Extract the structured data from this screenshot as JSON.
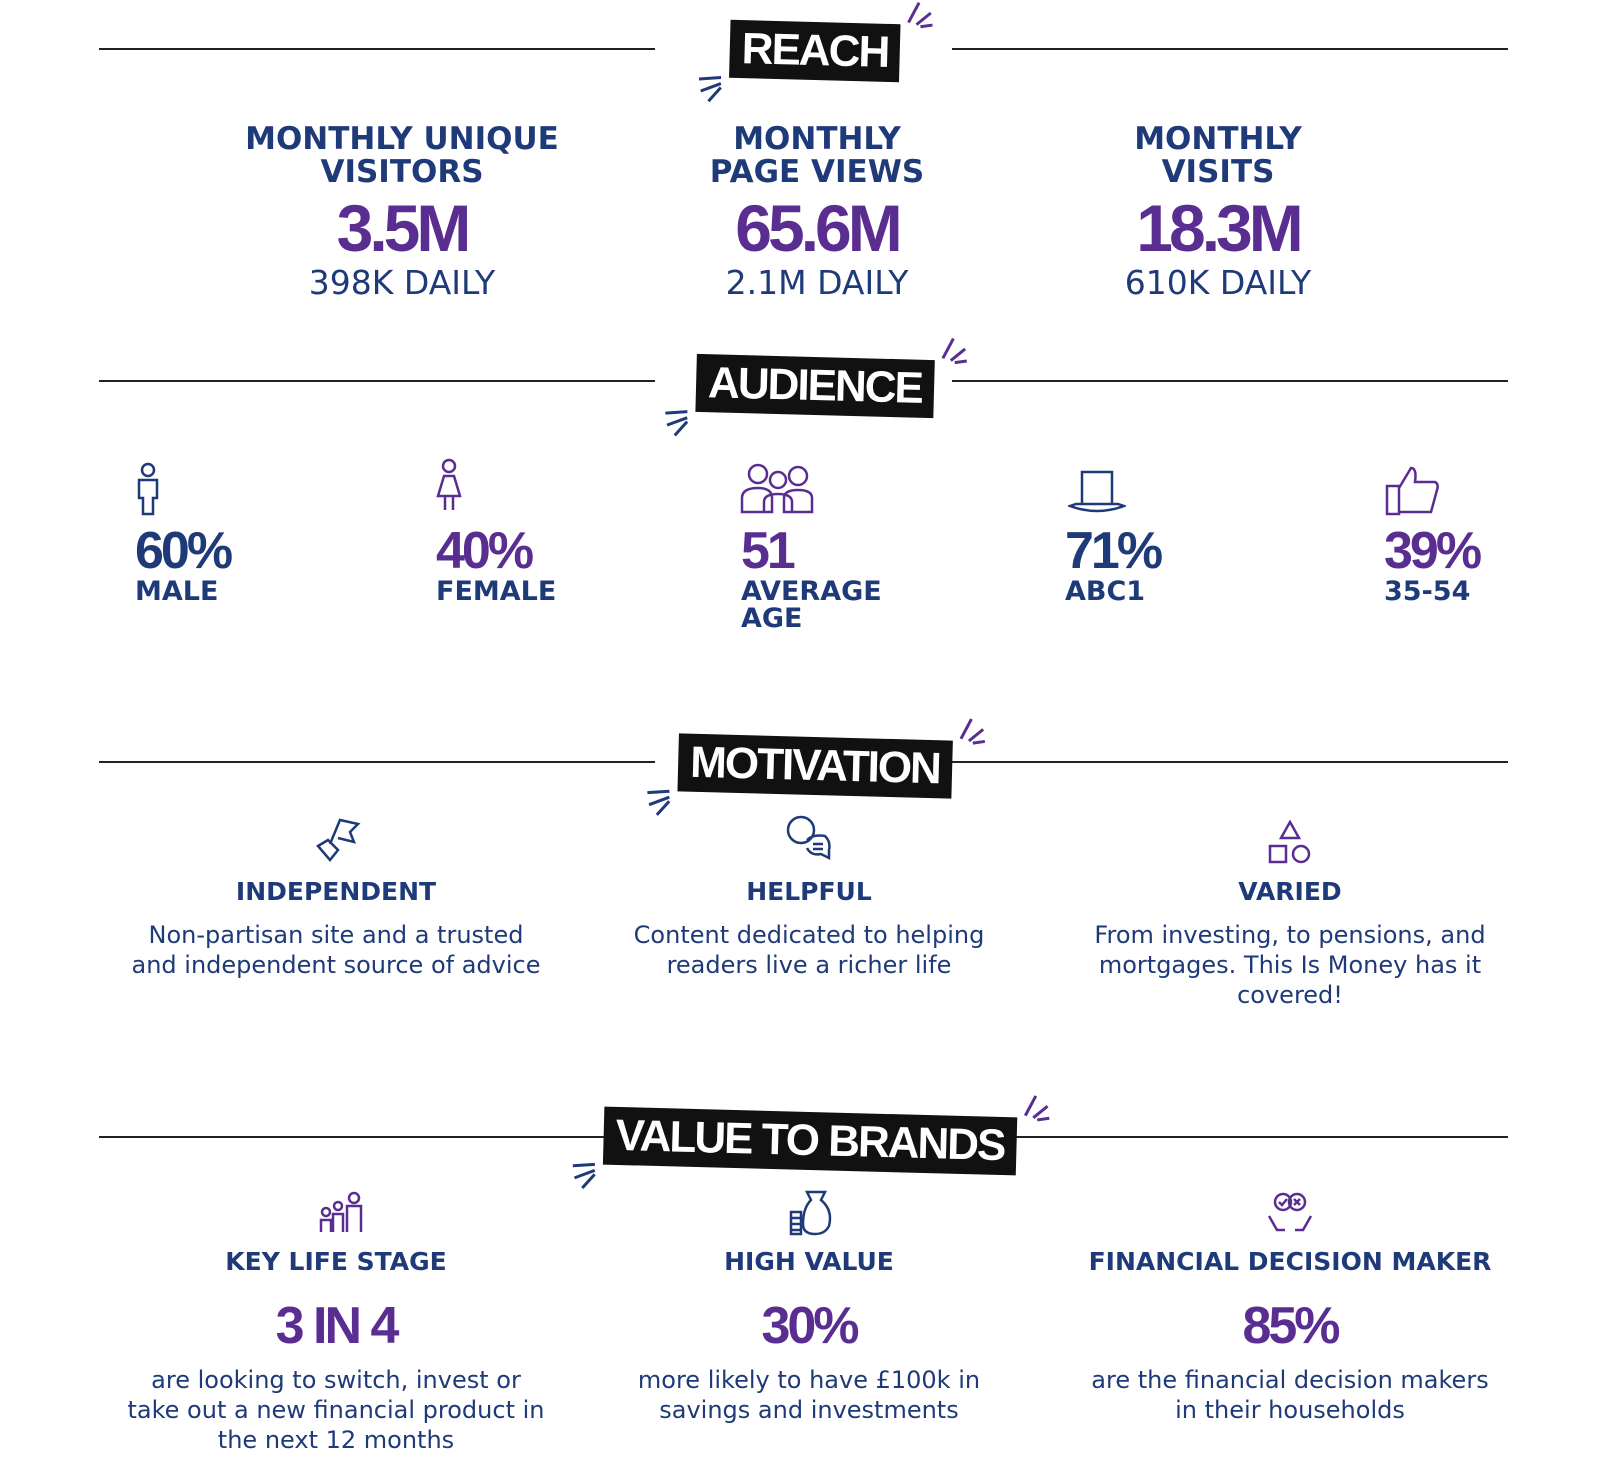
{
  "reach": {
    "title": "REACH",
    "items": [
      {
        "label": "MONTHLY UNIQUE VISITORS",
        "value": "3.5M",
        "daily": "398K DAILY"
      },
      {
        "label": "MONTHLY PAGE VIEWS",
        "value": "65.6M",
        "daily": "2.1M DAILY"
      },
      {
        "label": "MONTHLY VISITS",
        "value": "18.3M",
        "daily": "610K DAILY"
      }
    ]
  },
  "audience": {
    "title": "AUDIENCE",
    "items": [
      {
        "value": "60%",
        "label": "MALE"
      },
      {
        "value": "40%",
        "label": "FEMALE"
      },
      {
        "value": "51",
        "label": "AVERAGE AGE"
      },
      {
        "value": "71%",
        "label": "ABC1"
      },
      {
        "value": "39%",
        "label": "35-54"
      }
    ]
  },
  "motivation": {
    "title": "MOTIVATION",
    "items": [
      {
        "title": "INDEPENDENT",
        "text": "Non-partisan site and a trusted and independent source of advice"
      },
      {
        "title": "HELPFUL",
        "text": "Content dedicated to helping readers live a richer life"
      },
      {
        "title": "VARIED",
        "text": "From investing, to pensions, and mortgages. This Is Money has it covered!"
      }
    ]
  },
  "value_to_brands": {
    "title": "VALUE TO BRANDS",
    "items": [
      {
        "title": "KEY LIFE STAGE",
        "value": "3 IN 4",
        "text": "are looking to switch, invest or take out a new financial product in the next 12 months"
      },
      {
        "title": "HIGH VALUE",
        "value": "30%",
        "text": "more likely to have £100k in savings and investments"
      },
      {
        "title": "FINANCIAL DECISION MAKER",
        "value": "85%",
        "text": "are the financial decision makers in their households"
      }
    ]
  }
}
